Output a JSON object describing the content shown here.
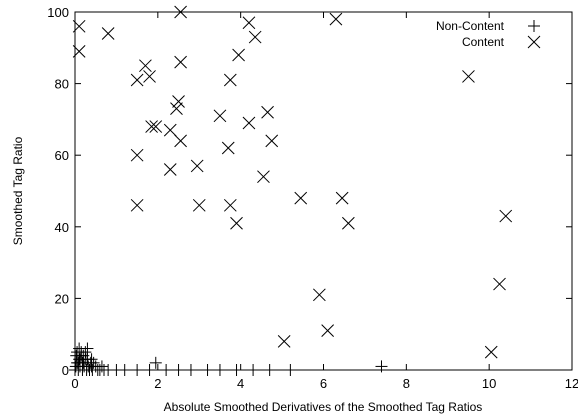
{
  "chart_data": {
    "type": "scatter",
    "xlabel": "Absolute Smoothed Derivatives of the Smoothed Tag Ratios",
    "ylabel": "Smoothed Tag Ratio",
    "xlim": [
      0,
      12
    ],
    "ylim": [
      0,
      100
    ],
    "x_ticks": [
      "0",
      "2",
      "4",
      "6",
      "8",
      "10",
      "12"
    ],
    "y_ticks": [
      "0",
      "20",
      "40",
      "60",
      "80",
      "100"
    ],
    "grid": false,
    "legend_position": "top-right",
    "series": [
      {
        "name": "Non-Content",
        "marker": "plus",
        "points": [
          [
            0.0,
            0
          ],
          [
            0.02,
            1
          ],
          [
            0.05,
            2
          ],
          [
            0.08,
            0
          ],
          [
            0.1,
            3
          ],
          [
            0.12,
            1
          ],
          [
            0.15,
            4
          ],
          [
            0.18,
            0
          ],
          [
            0.2,
            2
          ],
          [
            0.22,
            1
          ],
          [
            0.25,
            5
          ],
          [
            0.28,
            0
          ],
          [
            0.3,
            3
          ],
          [
            0.32,
            1
          ],
          [
            0.35,
            0
          ],
          [
            0.38,
            2
          ],
          [
            0.4,
            1
          ],
          [
            0.42,
            0
          ],
          [
            0.45,
            2
          ],
          [
            0.5,
            1
          ],
          [
            0.55,
            0
          ],
          [
            0.6,
            0
          ],
          [
            0.65,
            1
          ],
          [
            0.7,
            0
          ],
          [
            0.05,
            5
          ],
          [
            0.1,
            6
          ],
          [
            0.15,
            5
          ],
          [
            0.2,
            4
          ],
          [
            0.3,
            6
          ],
          [
            0.4,
            3
          ],
          [
            0.08,
            2
          ],
          [
            0.12,
            3
          ],
          [
            0.18,
            2
          ],
          [
            0.03,
            4
          ],
          [
            0.26,
            3
          ],
          [
            0.8,
            0
          ],
          [
            1.0,
            0
          ],
          [
            1.2,
            0
          ],
          [
            1.5,
            0
          ],
          [
            1.8,
            0
          ],
          [
            1.95,
            2
          ],
          [
            2.2,
            0
          ],
          [
            2.5,
            0
          ],
          [
            2.8,
            0
          ],
          [
            3.2,
            0
          ],
          [
            3.5,
            0
          ],
          [
            3.9,
            0
          ],
          [
            4.3,
            0
          ],
          [
            4.7,
            0
          ],
          [
            5.2,
            0
          ],
          [
            7.4,
            1
          ]
        ]
      },
      {
        "name": "Content",
        "marker": "cross",
        "points": [
          [
            0.1,
            96
          ],
          [
            0.1,
            89
          ],
          [
            0.8,
            94
          ],
          [
            2.55,
            100
          ],
          [
            4.2,
            97
          ],
          [
            6.3,
            98
          ],
          [
            4.35,
            93
          ],
          [
            9.5,
            82
          ],
          [
            1.5,
            81
          ],
          [
            1.7,
            85
          ],
          [
            1.8,
            82
          ],
          [
            2.55,
            86
          ],
          [
            3.95,
            88
          ],
          [
            3.75,
            81
          ],
          [
            2.45,
            73
          ],
          [
            2.5,
            75
          ],
          [
            2.3,
            67
          ],
          [
            1.85,
            68
          ],
          [
            1.95,
            68
          ],
          [
            3.5,
            71
          ],
          [
            4.2,
            69
          ],
          [
            4.65,
            72
          ],
          [
            2.55,
            64
          ],
          [
            2.95,
            57
          ],
          [
            2.3,
            56
          ],
          [
            1.5,
            60
          ],
          [
            3.7,
            62
          ],
          [
            4.75,
            64
          ],
          [
            4.55,
            54
          ],
          [
            1.5,
            46
          ],
          [
            3.0,
            46
          ],
          [
            3.75,
            46
          ],
          [
            3.9,
            41
          ],
          [
            5.45,
            48
          ],
          [
            6.45,
            48
          ],
          [
            6.6,
            41
          ],
          [
            10.4,
            43
          ],
          [
            5.9,
            21
          ],
          [
            6.1,
            11
          ],
          [
            5.05,
            8
          ],
          [
            10.25,
            24
          ],
          [
            10.05,
            5
          ]
        ]
      }
    ]
  }
}
